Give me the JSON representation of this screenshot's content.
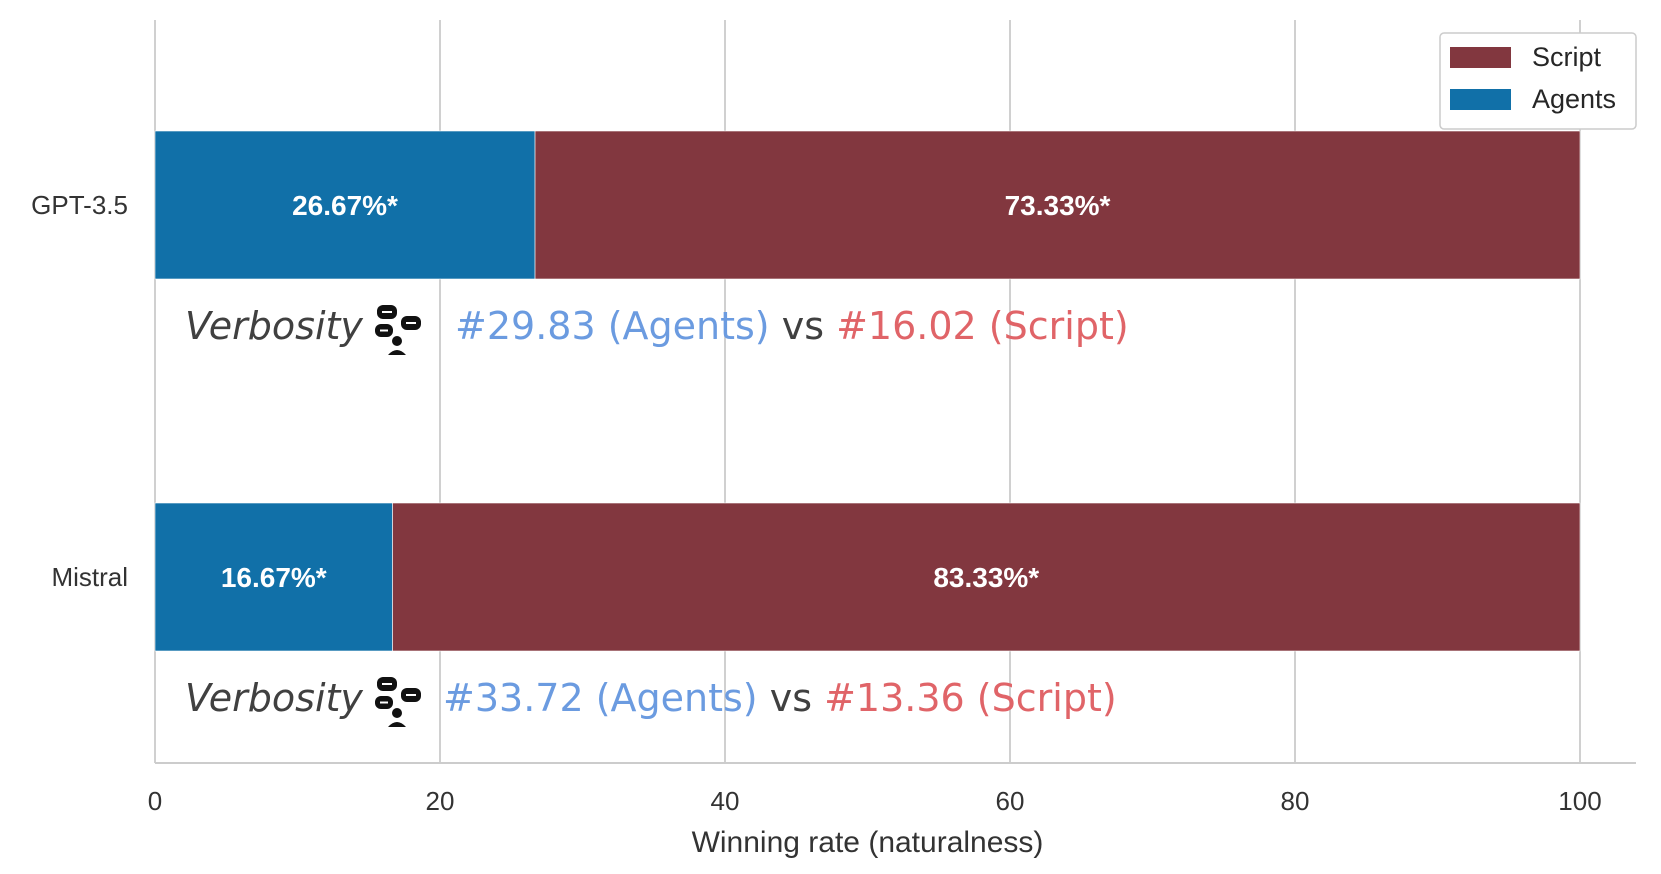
{
  "chart_data": {
    "type": "bar",
    "orientation": "horizontal",
    "stacked": true,
    "categories": [
      "GPT-3.5",
      "Mistral"
    ],
    "series": [
      {
        "name": "Agents",
        "color": "#1170a8",
        "values": [
          26.67,
          16.67
        ],
        "labels": [
          "26.67%*",
          "16.67%*"
        ]
      },
      {
        "name": "Script",
        "color": "#82373f",
        "values": [
          73.33,
          83.33
        ],
        "labels": [
          "73.33%*",
          "83.33%*"
        ]
      }
    ],
    "legend_order": [
      "Script",
      "Agents"
    ],
    "xlabel": "Winning rate (naturalness)",
    "ylabel": "",
    "xlim": [
      0,
      100
    ],
    "xticks": [
      0,
      20,
      40,
      60,
      80,
      100
    ],
    "grid": "vertical",
    "legend_position": "top-right",
    "annotations": [
      {
        "category": "GPT-3.5",
        "word": "Verbosity",
        "icon": "speech-bubbles-person-icon",
        "agents_text": "#29.83 (Agents)",
        "vs": "vs",
        "script_text": "#16.02 (Script)",
        "agents_color": "#6b9be0",
        "script_color": "#e06468"
      },
      {
        "category": "Mistral",
        "word": "Verbosity",
        "icon": "speech-bubbles-person-icon",
        "agents_text": "#33.72 (Agents)",
        "vs": "vs",
        "script_text": "#13.36 (Script)",
        "agents_color": "#6b9be0",
        "script_color": "#e06468"
      }
    ]
  }
}
